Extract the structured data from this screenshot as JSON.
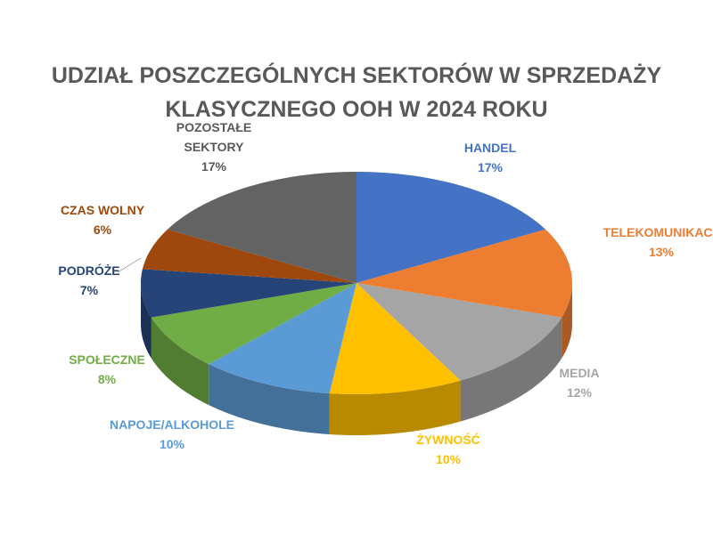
{
  "chart_data": {
    "type": "pie3d",
    "title": "UDZIAŁ POSZCZEGÓLNYCH SEKTORÓW W SPRZEDAŻY KLASYCZNEGO OOH W 2024 ROKU",
    "categories": [
      "HANDEL",
      "TELEKOMUNIKACJ",
      "MEDIA",
      "ŻYWNOŚĆ",
      "NAPOJE/ALKOHOLE",
      "SPOŁECZNE",
      "PODRÓŻE",
      "CZAS WOLNY",
      "POZOSTAŁE SEKTORY"
    ],
    "values": [
      17,
      13,
      12,
      10,
      10,
      8,
      7,
      6,
      17
    ],
    "value_labels": [
      "17%",
      "13%",
      "12%",
      "10%",
      "10%",
      "8%",
      "7%",
      "6%",
      "17%"
    ],
    "colors": [
      "#4472c4",
      "#ed7d31",
      "#a5a5a5",
      "#ffc000",
      "#5b9bd5",
      "#70ad47",
      "#264478",
      "#9e480e",
      "#636363"
    ]
  }
}
